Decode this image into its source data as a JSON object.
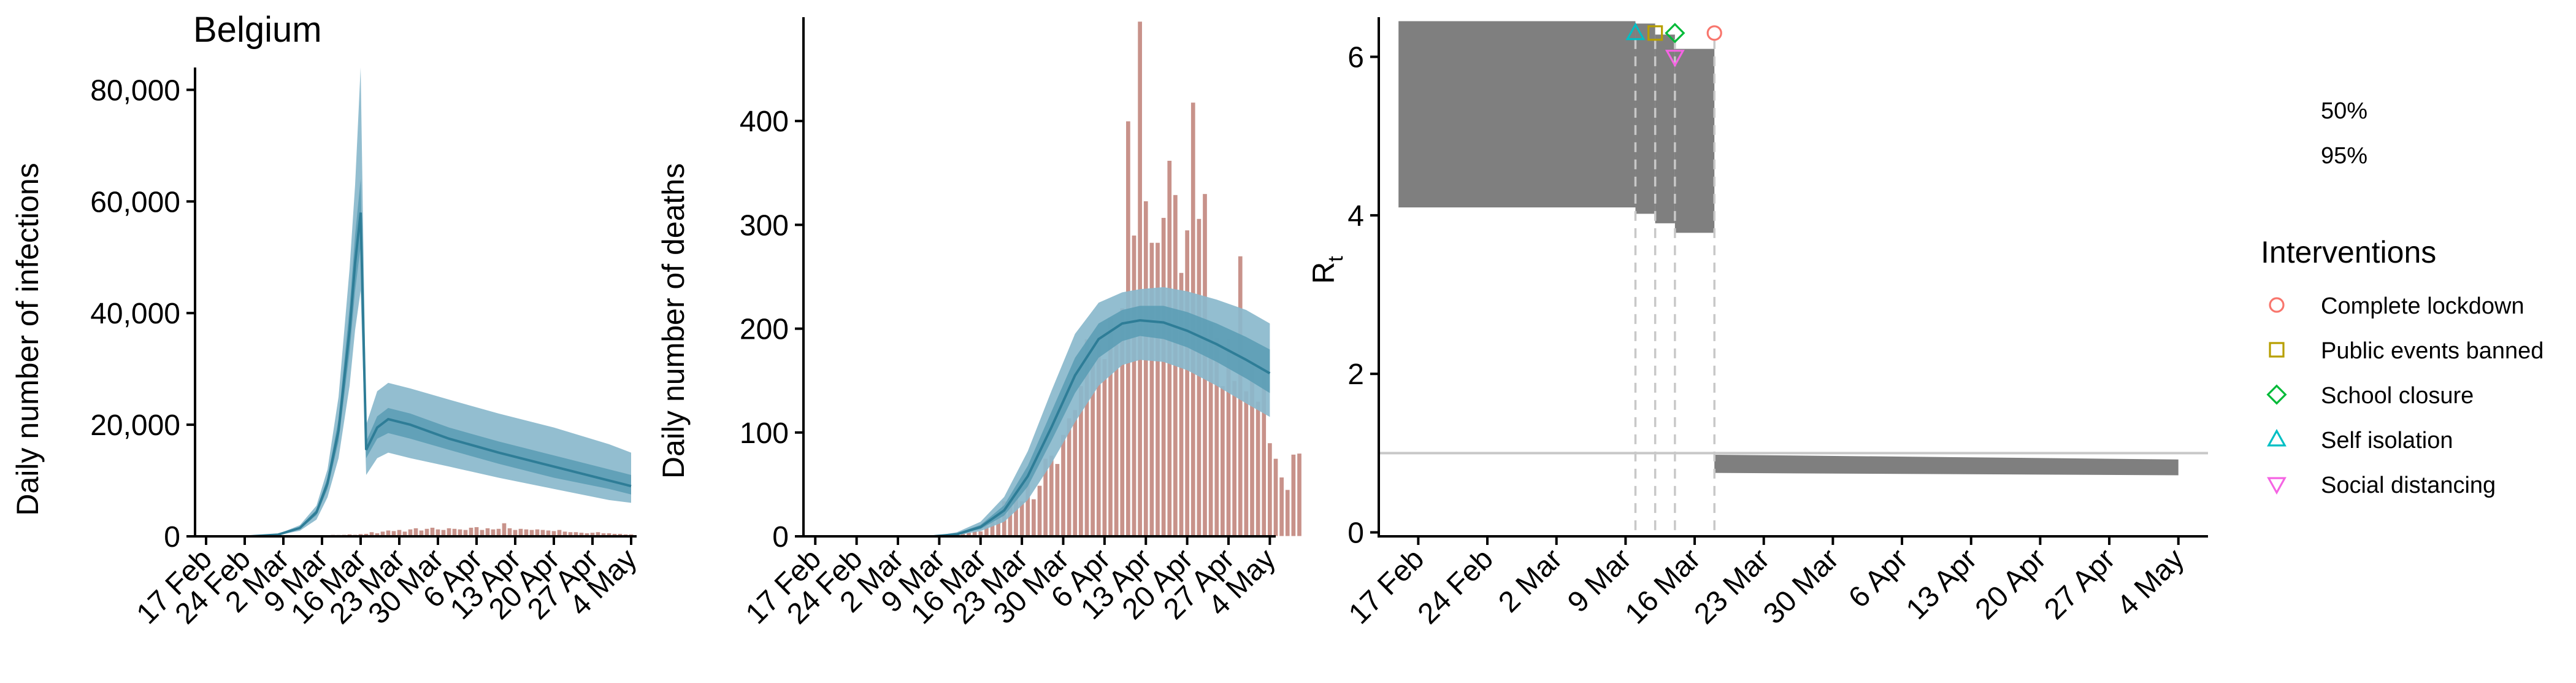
{
  "chart_data": [
    {
      "type": "area",
      "title": "Belgium",
      "xlabel": "",
      "ylabel": "Daily number of infections",
      "ylim": [
        0,
        84000
      ],
      "x_ticks": [
        "17 Feb",
        "24 Feb",
        "2 Mar",
        "9 Mar",
        "16 Mar",
        "23 Mar",
        "30 Mar",
        "6 Apr",
        "13 Apr",
        "20 Apr",
        "27 Apr",
        "4 May"
      ],
      "y_ticks": [
        "0",
        "20,000",
        "40,000",
        "60,000",
        "80,000"
      ],
      "y_tick_values": [
        0,
        20000,
        40000,
        60000,
        80000
      ],
      "x_start": "2020-02-15",
      "x_end": "2020-05-05",
      "colors": {
        "band95": "#8ab9cc",
        "band50": "#5d9eb5",
        "line": "#2e7d97",
        "bars": "#c8928a"
      },
      "bands": [
        {
          "x": "2020-02-15",
          "lo95": 0,
          "lo50": 0,
          "mid": 0,
          "hi50": 0,
          "hi95": 0
        },
        {
          "x": "2020-02-25",
          "lo95": 0,
          "lo50": 0,
          "mid": 0,
          "hi50": 0,
          "hi95": 0
        },
        {
          "x": "2020-03-01",
          "lo95": 200,
          "lo50": 250,
          "mid": 300,
          "hi50": 350,
          "hi95": 400
        },
        {
          "x": "2020-03-05",
          "lo95": 1000,
          "lo50": 1300,
          "mid": 1500,
          "hi50": 1700,
          "hi95": 2000
        },
        {
          "x": "2020-03-08",
          "lo95": 3000,
          "lo50": 3800,
          "mid": 4300,
          "hi50": 4800,
          "hi95": 5500
        },
        {
          "x": "2020-03-10",
          "lo95": 7000,
          "lo50": 8500,
          "mid": 9500,
          "hi50": 10500,
          "hi95": 12000
        },
        {
          "x": "2020-03-12",
          "lo95": 14000,
          "lo50": 17000,
          "mid": 19000,
          "hi50": 21000,
          "hi95": 25000
        },
        {
          "x": "2020-03-14",
          "lo95": 27000,
          "lo50": 33000,
          "mid": 37000,
          "hi50": 41000,
          "hi95": 48000
        },
        {
          "x": "2020-03-15",
          "lo95": 37000,
          "lo50": 44000,
          "mid": 49000,
          "hi50": 54000,
          "hi95": 63000
        },
        {
          "x": "2020-03-16",
          "lo95": 44000,
          "lo50": 52000,
          "mid": 58000,
          "hi50": 64000,
          "hi95": 84000
        },
        {
          "x": "2020-03-17",
          "lo95": 11000,
          "lo50": 14000,
          "mid": 15500,
          "hi50": 17000,
          "hi95": 20000
        },
        {
          "x": "2020-03-19",
          "lo95": 14000,
          "lo50": 17500,
          "mid": 19500,
          "hi50": 21500,
          "hi95": 26000
        },
        {
          "x": "2020-03-21",
          "lo95": 15000,
          "lo50": 18500,
          "mid": 21000,
          "hi50": 23000,
          "hi95": 27500
        },
        {
          "x": "2020-03-25",
          "lo95": 14000,
          "lo50": 17500,
          "mid": 20000,
          "hi50": 22000,
          "hi95": 26500
        },
        {
          "x": "2020-04-01",
          "lo95": 12500,
          "lo50": 15500,
          "mid": 17500,
          "hi50": 19500,
          "hi95": 24500
        },
        {
          "x": "2020-04-10",
          "lo95": 10500,
          "lo50": 13000,
          "mid": 15000,
          "hi50": 17000,
          "hi95": 22000
        },
        {
          "x": "2020-04-20",
          "lo95": 8500,
          "lo50": 10500,
          "mid": 12500,
          "hi50": 14500,
          "hi95": 19500
        },
        {
          "x": "2020-04-30",
          "lo95": 6500,
          "lo50": 8500,
          "mid": 10000,
          "hi50": 12000,
          "hi95": 16500
        },
        {
          "x": "2020-05-04",
          "lo95": 6000,
          "lo50": 7500,
          "mid": 9000,
          "hi50": 11000,
          "hi95": 15000
        }
      ],
      "bars": {
        "start": "2020-03-01",
        "values": [
          2,
          6,
          13,
          23,
          50,
          109,
          169,
          200,
          239,
          267,
          314,
          299,
          320,
          400,
          330,
          450,
          500,
          800,
          600,
          900,
          1100,
          1000,
          1200,
          900,
          1300,
          1500,
          1100,
          1400,
          1600,
          1300,
          1200,
          1500,
          1400,
          1300,
          1200,
          1600,
          1700,
          1200,
          1500,
          1300,
          1400,
          2400,
          1500,
          1200,
          1400,
          1300,
          1200,
          1300,
          1200,
          1100,
          1000,
          1200,
          900,
          800,
          800,
          700,
          600,
          700,
          800,
          600,
          600,
          500,
          500,
          400,
          400
        ]
      }
    },
    {
      "type": "area",
      "title": "",
      "xlabel": "",
      "ylabel": "Daily number of deaths",
      "ylim": [
        0,
        500
      ],
      "x_ticks": [
        "17 Feb",
        "24 Feb",
        "2 Mar",
        "9 Mar",
        "16 Mar",
        "23 Mar",
        "30 Mar",
        "6 Apr",
        "13 Apr",
        "20 Apr",
        "27 Apr",
        "4 May"
      ],
      "y_ticks": [
        "0",
        "100",
        "200",
        "300",
        "400"
      ],
      "y_tick_values": [
        0,
        100,
        200,
        300,
        400
      ],
      "x_start": "2020-02-15",
      "x_end": "2020-05-05",
      "colors": {
        "band95": "#8ab9cc",
        "band50": "#5d9eb5",
        "line": "#2e7d97",
        "bars": "#c8928a"
      },
      "bands": [
        {
          "x": "2020-02-15",
          "lo95": 0,
          "lo50": 0,
          "mid": 0,
          "hi50": 0,
          "hi95": 0
        },
        {
          "x": "2020-03-08",
          "lo95": 0,
          "lo50": 0,
          "mid": 0,
          "hi50": 0,
          "hi95": 0
        },
        {
          "x": "2020-03-12",
          "lo95": 1,
          "lo50": 2,
          "mid": 2,
          "hi50": 3,
          "hi95": 4
        },
        {
          "x": "2020-03-16",
          "lo95": 5,
          "lo50": 7,
          "mid": 9,
          "hi50": 11,
          "hi95": 14
        },
        {
          "x": "2020-03-20",
          "lo95": 14,
          "lo50": 20,
          "mid": 25,
          "hi50": 30,
          "hi95": 38
        },
        {
          "x": "2020-03-24",
          "lo95": 35,
          "lo50": 48,
          "mid": 58,
          "hi50": 68,
          "hi95": 82
        },
        {
          "x": "2020-03-28",
          "lo95": 70,
          "lo50": 92,
          "mid": 105,
          "hi50": 120,
          "hi95": 140
        },
        {
          "x": "2020-04-01",
          "lo95": 110,
          "lo50": 138,
          "mid": 155,
          "hi50": 172,
          "hi95": 195
        },
        {
          "x": "2020-04-05",
          "lo95": 145,
          "lo50": 172,
          "mid": 190,
          "hi50": 205,
          "hi95": 225
        },
        {
          "x": "2020-04-09",
          "lo95": 165,
          "lo50": 188,
          "mid": 205,
          "hi50": 218,
          "hi95": 235
        },
        {
          "x": "2020-04-12",
          "lo95": 170,
          "lo50": 193,
          "mid": 208,
          "hi50": 222,
          "hi95": 238
        },
        {
          "x": "2020-04-16",
          "lo95": 168,
          "lo50": 190,
          "mid": 206,
          "hi50": 222,
          "hi95": 240
        },
        {
          "x": "2020-04-20",
          "lo95": 160,
          "lo50": 182,
          "mid": 198,
          "hi50": 216,
          "hi95": 236
        },
        {
          "x": "2020-04-25",
          "lo95": 145,
          "lo50": 168,
          "mid": 185,
          "hi50": 205,
          "hi95": 228
        },
        {
          "x": "2020-04-30",
          "lo95": 128,
          "lo50": 152,
          "mid": 170,
          "hi50": 192,
          "hi95": 218
        },
        {
          "x": "2020-05-04",
          "lo95": 115,
          "lo50": 138,
          "mid": 157,
          "hi50": 180,
          "hi95": 205
        }
      ],
      "bars": {
        "start": "2020-03-11",
        "values": [
          1,
          2,
          3,
          4,
          5,
          5,
          10,
          14,
          21,
          34,
          30,
          42,
          34,
          56,
          36,
          49,
          75,
          78,
          70,
          98,
          114,
          122,
          145,
          190,
          167,
          184,
          171,
          211,
          185,
          220,
          400,
          290,
          496,
          323,
          283,
          283,
          307,
          362,
          329,
          254,
          295,
          418,
          306,
          330,
          206,
          191,
          145,
          190,
          150,
          270,
          140,
          164,
          130,
          156,
          90,
          75,
          57,
          45,
          79,
          80
        ]
      }
    },
    {
      "type": "area",
      "title": "",
      "xlabel": "",
      "ylabel": "R",
      "ylabel_subscript": "t",
      "ylim": [
        -0.05,
        6.5
      ],
      "x_ticks": [
        "17 Feb",
        "24 Feb",
        "2 Mar",
        "9 Mar",
        "16 Mar",
        "23 Mar",
        "30 Mar",
        "6 Apr",
        "13 Apr",
        "20 Apr",
        "27 Apr",
        "4 May"
      ],
      "y_ticks": [
        "0",
        "2",
        "4",
        "6"
      ],
      "y_tick_values": [
        0,
        2,
        4,
        6
      ],
      "x_start": "2020-02-13",
      "x_end": "2020-05-07",
      "reference_line": 1,
      "colors": {
        "band": "#7f7f7f",
        "reference": "#c8c8c8",
        "dashes": "#c8c8c8"
      },
      "segments": [
        {
          "from": "2020-02-15",
          "to": "2020-03-10",
          "lo": 4.1,
          "hi": 6.45
        },
        {
          "from": "2020-03-10",
          "to": "2020-03-12",
          "lo": 4.02,
          "hi": 6.42
        },
        {
          "from": "2020-03-12",
          "to": "2020-03-14",
          "lo": 3.9,
          "hi": 6.28
        },
        {
          "from": "2020-03-14",
          "to": "2020-03-18",
          "lo": 3.78,
          "hi": 6.1
        },
        {
          "from": "2020-03-18",
          "to": "2020-05-04",
          "lo_start": 0.75,
          "hi_start": 0.98,
          "lo_end": 0.72,
          "hi_end": 0.92
        }
      ],
      "interventions": [
        {
          "name": "Complete lockdown",
          "date": "2020-03-18",
          "marker": "circle",
          "color": "#f8766d",
          "y": 6.3
        },
        {
          "name": "Public events banned",
          "date": "2020-03-12",
          "marker": "square",
          "color": "#b79f00",
          "y": 6.3
        },
        {
          "name": "School closure",
          "date": "2020-03-14",
          "marker": "diamond",
          "color": "#00ba38",
          "y": 6.3
        },
        {
          "name": "Self isolation",
          "date": "2020-03-10",
          "marker": "triangle-up",
          "color": "#00bfc4",
          "y": 6.3
        },
        {
          "name": "Social distancing",
          "date": "2020-03-14",
          "marker": "triangle-down",
          "color": "#f564e3",
          "y": 6.0
        }
      ]
    }
  ],
  "legend": {
    "band_labels": [
      "50%",
      "95%"
    ],
    "title": "Interventions",
    "items": [
      {
        "label": "Complete lockdown",
        "marker": "circle",
        "color": "#f8766d"
      },
      {
        "label": "Public events banned",
        "marker": "square",
        "color": "#b79f00"
      },
      {
        "label": "School closure",
        "marker": "diamond",
        "color": "#00ba38"
      },
      {
        "label": "Self isolation",
        "marker": "triangle-up",
        "color": "#00bfc4"
      },
      {
        "label": "Social distancing",
        "marker": "triangle-down",
        "color": "#f564e3"
      }
    ]
  }
}
